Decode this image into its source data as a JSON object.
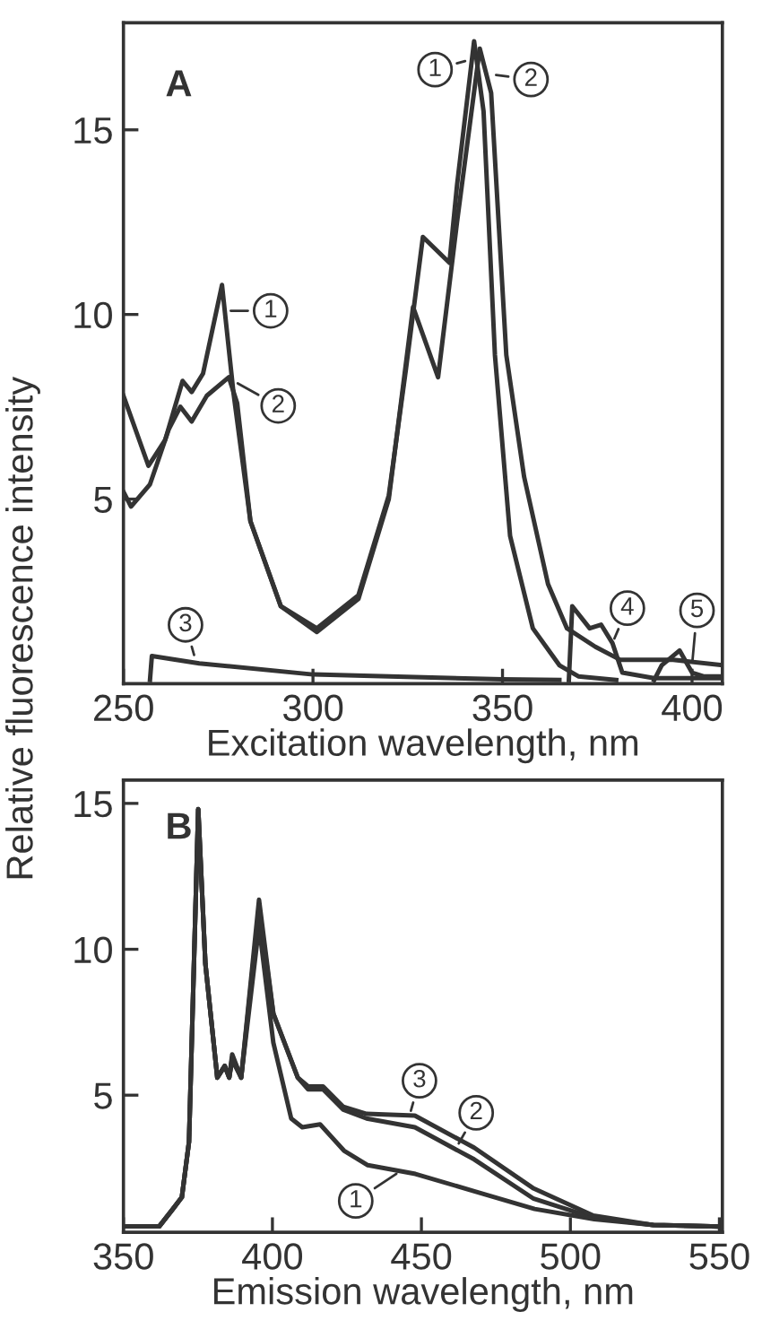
{
  "chart_data": [
    {
      "type": "line",
      "xlabel": "Excitation wavelength, nm",
      "ylabel": "Relative fluorescence intensity",
      "xlim": [
        250,
        408
      ],
      "ylim": [
        0,
        17.9
      ],
      "xticks": [
        250,
        300,
        350,
        400
      ],
      "yticks": [
        5,
        10,
        15
      ],
      "grid": false,
      "legend": false,
      "series": [
        {
          "color": "#333333",
          "x": [
            250,
            256.6,
            261,
            265.6,
            268,
            271,
            276,
            279,
            283.5,
            291.5,
            301,
            312,
            320,
            324.5,
            329,
            336,
            338,
            342.5,
            345,
            348,
            352,
            358,
            365,
            370,
            380
          ],
          "values": [
            7.8,
            5.9,
            6.6,
            8.2,
            7.9,
            8.4,
            10.8,
            7.9,
            4.4,
            2.1,
            1.5,
            2.4,
            5.1,
            8.5,
            12.1,
            11.4,
            13.5,
            17.4,
            15.5,
            8.9,
            4.0,
            1.5,
            0.5,
            0.2,
            0.1
          ]
        },
        {
          "color": "#333333",
          "x": [
            250,
            252,
            257,
            262,
            265,
            268,
            272,
            277.8,
            280,
            283.5,
            291.5,
            301,
            312,
            320,
            326.4,
            333,
            338,
            344,
            347,
            351,
            355.7,
            362,
            367,
            374.5,
            381,
            395,
            408
          ],
          "values": [
            5.2,
            4.8,
            5.4,
            6.9,
            7.5,
            7.1,
            7.8,
            8.3,
            7.6,
            4.4,
            2.1,
            1.4,
            2.3,
            5.0,
            10.2,
            8.3,
            12.5,
            17.2,
            16.0,
            8.9,
            5.6,
            2.7,
            1.5,
            1.0,
            0.65,
            0.65,
            0.5
          ]
        },
        {
          "color": "#333333",
          "x": [
            257,
            257.5,
            270,
            300,
            350,
            365
          ],
          "values": [
            0.1,
            0.75,
            0.55,
            0.25,
            0.12,
            0.1
          ]
        },
        {
          "color": "#333333",
          "x": [
            367.5,
            368.4,
            373,
            376,
            379,
            381.6,
            390,
            408
          ],
          "values": [
            0.1,
            2.1,
            1.5,
            1.6,
            1.1,
            0.3,
            0.15,
            0.15
          ]
        },
        {
          "color": "#333333",
          "x": [
            390,
            392,
            396.7,
            400,
            403,
            408
          ],
          "values": [
            0.1,
            0.5,
            0.9,
            0.3,
            0.2,
            0.2
          ]
        }
      ],
      "annotations": [
        "A",
        {
          "text": "1",
          "x": 277,
          "y": 10.1
        },
        {
          "text": "2",
          "x": 279,
          "y": 8.2
        },
        {
          "text": "1",
          "x": 341.4,
          "y": 16.9
        },
        {
          "text": "2",
          "x": 347,
          "y": 16.5
        },
        {
          "text": "3",
          "x": 269,
          "y": 0.65
        },
        {
          "text": "4",
          "x": 379,
          "y": 1.1
        },
        {
          "text": "5",
          "x": 400,
          "y": 0.5
        }
      ]
    },
    {
      "type": "line",
      "xlabel": "Emission wavelength, nm",
      "xlim": [
        350,
        551
      ],
      "ylim": [
        0.3,
        15.8
      ],
      "xticks": [
        350,
        400,
        450,
        500,
        550
      ],
      "yticks": [
        5,
        10,
        15
      ],
      "grid": false,
      "legend": false,
      "series": [
        {
          "color": "#333333",
          "x": [
            350.6,
            362,
            366.6,
            369.6,
            372,
            375.1,
            377.5,
            381.5,
            384,
            385.5,
            386.5,
            389.5,
            395.5,
            400.3,
            406.3,
            410,
            416,
            424,
            432,
            448,
            468,
            488,
            508,
            528,
            549.6
          ],
          "values": [
            0.5,
            0.5,
            1.1,
            1.5,
            3.4,
            14.8,
            9.5,
            5.6,
            6.0,
            5.6,
            6.2,
            5.6,
            10.8,
            6.8,
            4.2,
            3.9,
            4.0,
            3.1,
            2.6,
            2.3,
            1.7,
            1.1,
            0.75,
            0.55,
            0.5
          ]
        },
        {
          "color": "#333333",
          "x": [
            350.6,
            362,
            366.6,
            369.6,
            372,
            375.1,
            377.5,
            381.5,
            384,
            385.5,
            386.5,
            389.5,
            395.5,
            400.3,
            408.5,
            412,
            417,
            423.8,
            431.6,
            447.8,
            467.7,
            487.7,
            507.7,
            527.7,
            549.6
          ],
          "values": [
            0.5,
            0.5,
            1.1,
            1.5,
            3.4,
            14.8,
            9.5,
            5.6,
            6.0,
            5.6,
            6.3,
            5.6,
            11.4,
            7.8,
            5.6,
            5.2,
            5.2,
            4.5,
            4.2,
            3.9,
            2.8,
            1.45,
            0.8,
            0.55,
            0.5
          ]
        },
        {
          "color": "#333333",
          "x": [
            350.6,
            362,
            366.6,
            369.6,
            372,
            375.1,
            377.5,
            381.5,
            384,
            385.5,
            386.5,
            389.5,
            395.5,
            400.3,
            408.5,
            412,
            417,
            423.8,
            431.6,
            447.8,
            467.7,
            487.7,
            507.7,
            527.7,
            549.6
          ],
          "values": [
            0.5,
            0.5,
            1.1,
            1.5,
            3.4,
            14.8,
            9.5,
            5.6,
            6.0,
            5.6,
            6.4,
            5.6,
            11.7,
            7.8,
            5.6,
            5.3,
            5.3,
            4.6,
            4.36,
            4.3,
            3.2,
            1.8,
            0.87,
            0.55,
            0.5
          ]
        }
      ],
      "annotations": [
        "B",
        {
          "text": "1",
          "x": 443,
          "y": 2.4
        },
        {
          "text": "2",
          "x": 461.7,
          "y": 3.2
        },
        {
          "text": "3",
          "x": 446,
          "y": 4.3
        }
      ]
    }
  ]
}
